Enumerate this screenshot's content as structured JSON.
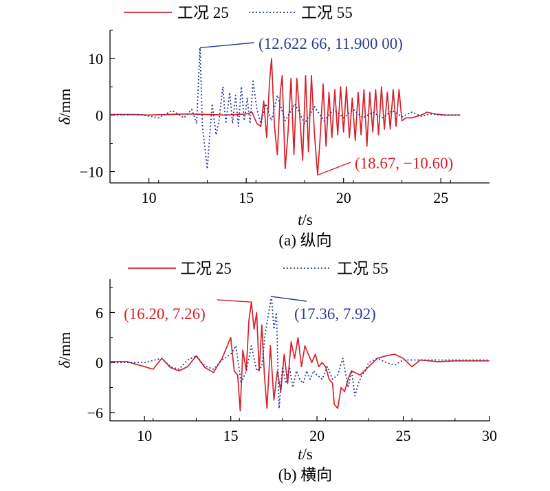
{
  "colors": {
    "red": "#d6212b",
    "blue": "#2a3d8f"
  },
  "legend": [
    "工况 25",
    "工况 55"
  ],
  "chart_data": [
    {
      "type": "line",
      "caption": "(a) 纵向",
      "xlabel_var": "t",
      "xlabel_unit": "/s",
      "ylabel_var": "δ",
      "ylabel_unit": "/mm",
      "xlim": [
        8,
        27.5
      ],
      "ylim": [
        -12,
        15
      ],
      "xticks": [
        10,
        15,
        20,
        25
      ],
      "yticks": [
        -10,
        0,
        10
      ],
      "series": [
        {
          "name": "工况 25",
          "style": "solid",
          "color": "#d6212b",
          "x": [
            8.0,
            9,
            10,
            11,
            12,
            13,
            14,
            15,
            15.3,
            15.55,
            15.75,
            15.9,
            16.05,
            16.2,
            16.3,
            16.45,
            16.6,
            16.75,
            16.85,
            17.0,
            17.15,
            17.3,
            17.45,
            17.6,
            17.75,
            17.9,
            18.05,
            18.2,
            18.35,
            18.5,
            18.67,
            18.8,
            18.95,
            19.1,
            19.25,
            19.4,
            19.55,
            19.7,
            19.85,
            20.0,
            20.15,
            20.3,
            20.45,
            20.6,
            20.75,
            20.9,
            21.05,
            21.2,
            21.35,
            21.5,
            21.65,
            21.8,
            21.95,
            22.1,
            22.25,
            22.4,
            22.55,
            22.7,
            22.85,
            23.0,
            23.2,
            23.5,
            24.0,
            24.3,
            24.7,
            25.2,
            26.0
          ],
          "y": [
            0.1,
            0.1,
            0.0,
            0.1,
            0.2,
            0.1,
            0.0,
            0.2,
            0.5,
            -1.5,
            -2.0,
            2.5,
            -4.0,
            6.0,
            10.0,
            -2.0,
            -7.0,
            4.0,
            7.0,
            -9.5,
            -3.0,
            6.5,
            -7.0,
            6.5,
            0.0,
            -8.0,
            7.0,
            -6.5,
            7.0,
            -3.0,
            -10.6,
            -4.0,
            5.5,
            -5.5,
            4.0,
            -4.0,
            4.5,
            -3.5,
            5.0,
            -3.0,
            5.0,
            -4.0,
            3.0,
            -4.5,
            4.0,
            -3.5,
            4.5,
            -5.5,
            4.0,
            -3.0,
            4.5,
            -3.5,
            5.0,
            -2.5,
            4.0,
            -2.5,
            4.5,
            -2.0,
            4.5,
            -1.0,
            -0.5,
            -0.5,
            0.0,
            0.5,
            0.2,
            0.0,
            0.0
          ]
        },
        {
          "name": "工况 55",
          "style": "dotted",
          "color": "#2a3d8f",
          "x": [
            8.0,
            9.5,
            10.5,
            11.2,
            11.8,
            12.2,
            12.45,
            12.62266,
            12.75,
            12.85,
            13.0,
            13.25,
            13.45,
            13.6,
            13.8,
            13.95,
            14.15,
            14.3,
            14.45,
            14.6,
            14.75,
            14.9,
            15.05,
            15.2,
            15.35,
            15.55,
            15.75,
            16.0,
            16.3,
            16.6,
            17.0,
            17.5,
            18.0,
            18.5,
            19.0,
            19.5,
            20.0,
            20.5,
            21.0,
            21.5,
            22.0,
            22.5,
            23.0,
            23.5,
            24.0,
            24.5,
            25.0,
            26.0
          ],
          "y": [
            0.0,
            0.1,
            -0.5,
            0.8,
            -0.5,
            1.0,
            -1.5,
            11.9,
            -2.0,
            -5.0,
            -9.5,
            2.0,
            -3.5,
            -1.0,
            5.0,
            -1.5,
            4.0,
            -1.5,
            3.5,
            -2.0,
            5.0,
            -1.0,
            3.0,
            -1.5,
            6.0,
            1.0,
            -1.5,
            2.0,
            -1.0,
            3.5,
            -1.0,
            2.0,
            -1.5,
            1.5,
            -1.0,
            1.0,
            -0.5,
            1.0,
            -0.5,
            0.5,
            -0.5,
            0.8,
            -0.3,
            0.5,
            -0.2,
            0.2,
            0.0,
            0.0
          ]
        }
      ],
      "annotations": [
        {
          "text": "(12.622 66, 11.900 00)",
          "x": 12.62266,
          "y": 11.9,
          "color": "#2a3d8f"
        },
        {
          "text": "(18.67, −10.60)",
          "x": 18.67,
          "y": -10.6,
          "color": "#d6212b"
        }
      ]
    },
    {
      "type": "line",
      "caption": "(b) 横向",
      "xlabel_var": "t",
      "xlabel_unit": "/s",
      "ylabel_var": "δ",
      "ylabel_unit": "/mm",
      "xlim": [
        8,
        30
      ],
      "ylim": [
        -7,
        10
      ],
      "xticks": [
        10,
        15,
        20,
        25,
        30
      ],
      "yticks": [
        -6,
        0,
        6
      ],
      "series": [
        {
          "name": "工况 25",
          "style": "solid",
          "color": "#d6212b",
          "x": [
            8.0,
            9.0,
            10.0,
            10.5,
            11.0,
            11.5,
            12.0,
            12.5,
            13.0,
            13.5,
            14.0,
            14.5,
            14.8,
            15.0,
            15.2,
            15.4,
            15.55,
            15.7,
            15.9,
            16.05,
            16.2,
            16.35,
            16.5,
            16.65,
            16.8,
            16.95,
            17.1,
            17.3,
            17.5,
            17.7,
            17.9,
            18.1,
            18.3,
            18.5,
            18.7,
            18.9,
            19.1,
            19.3,
            19.5,
            19.7,
            19.9,
            20.1,
            20.3,
            20.5,
            20.7,
            20.9,
            21.0,
            21.2,
            21.4,
            21.6,
            21.8,
            22.0,
            22.5,
            23.0,
            23.5,
            24.0,
            24.5,
            25.0,
            25.5,
            26.0,
            27.0,
            28.0,
            29.0,
            30.0
          ],
          "y": [
            0.1,
            0.1,
            -0.5,
            -0.8,
            0.5,
            -0.6,
            -1.0,
            -0.5,
            0.8,
            -0.6,
            -1.2,
            0.5,
            2.0,
            3.0,
            -1.0,
            -1.5,
            -5.8,
            1.5,
            -1.0,
            5.0,
            7.26,
            4.0,
            6.0,
            -1.0,
            4.5,
            -1.5,
            -5.5,
            2.0,
            -4.5,
            -1.0,
            -3.5,
            1.0,
            -2.5,
            2.5,
            0.5,
            3.0,
            -0.5,
            2.0,
            1.0,
            0.0,
            1.0,
            -0.5,
            0.0,
            -0.5,
            -2.0,
            -2.5,
            -5.0,
            -5.5,
            -3.0,
            -3.5,
            -2.0,
            -1.0,
            -1.5,
            -0.5,
            0.5,
            0.8,
            1.0,
            0.5,
            -0.5,
            0.3,
            0.1,
            0.2,
            0.2,
            0.2
          ]
        },
        {
          "name": "工况 55",
          "style": "dotted",
          "color": "#2a3d8f",
          "x": [
            8.0,
            10.0,
            11.0,
            11.5,
            12.0,
            12.5,
            13.0,
            13.5,
            14.0,
            14.5,
            15.0,
            15.3,
            15.6,
            15.9,
            16.2,
            16.5,
            16.8,
            17.0,
            17.2,
            17.36,
            17.5,
            17.65,
            17.8,
            18.0,
            18.2,
            18.4,
            18.6,
            18.8,
            19.0,
            19.2,
            19.4,
            19.6,
            19.8,
            20.0,
            20.3,
            20.6,
            20.9,
            21.2,
            21.5,
            21.8,
            22.0,
            22.2,
            22.4,
            22.6,
            22.8,
            23.0,
            23.5,
            24.0,
            24.5,
            25.0,
            26.0,
            27.0,
            28.0,
            29.0,
            30.0
          ],
          "y": [
            0.0,
            0.0,
            0.5,
            -0.5,
            -0.8,
            0.3,
            0.8,
            -0.4,
            -0.8,
            0.3,
            1.0,
            2.0,
            -2.5,
            -1.0,
            2.0,
            -1.0,
            -0.5,
            3.5,
            6.0,
            7.92,
            4.0,
            6.0,
            -5.5,
            -0.5,
            -2.5,
            -0.5,
            -3.0,
            -1.0,
            -2.0,
            -2.5,
            -1.0,
            -2.0,
            -1.0,
            -1.5,
            -2.0,
            -0.5,
            -2.0,
            -1.5,
            0.5,
            -3.0,
            -1.0,
            -4.0,
            -2.5,
            -1.5,
            -1.0,
            0.0,
            0.5,
            0.0,
            -0.3,
            0.3,
            0.3,
            0.3,
            0.3,
            0.3,
            0.3
          ]
        }
      ],
      "annotations": [
        {
          "text": "(16.20, 7.26)",
          "x": 16.2,
          "y": 7.26,
          "color": "#d6212b"
        },
        {
          "text": "(17.36, 7.92)",
          "x": 17.36,
          "y": 7.92,
          "color": "#2a3d8f"
        }
      ]
    }
  ]
}
